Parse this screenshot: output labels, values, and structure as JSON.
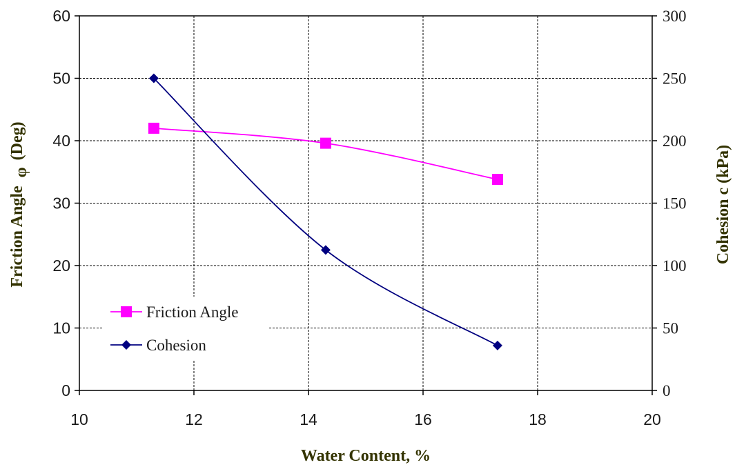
{
  "chart_data": {
    "type": "line",
    "xlabel": "Water Content, %",
    "ylabel_left": "Friction Angle",
    "ylabel_left_symbol": "φ",
    "ylabel_left_unit": "(Deg)",
    "ylabel_right": "Cohesion c (kPa)",
    "xlim": [
      10,
      20
    ],
    "xticks": [
      "10",
      "12",
      "14",
      "16",
      "18",
      "20"
    ],
    "ylim_left": [
      0,
      60
    ],
    "yticks_left": [
      "0",
      "10",
      "20",
      "30",
      "40",
      "50",
      "60"
    ],
    "ylim_right": [
      0,
      300
    ],
    "yticks_right": [
      "0",
      "50",
      "100",
      "150",
      "200",
      "250",
      "300"
    ],
    "grid": true,
    "legend_position": "lower-left",
    "series": [
      {
        "name": "Friction Angle",
        "axis": "left",
        "marker": "square",
        "color": "#ff00ff",
        "x": [
          11.3,
          14.3,
          17.3
        ],
        "y": [
          42,
          39.6,
          33.8
        ]
      },
      {
        "name": "Cohesion",
        "axis": "right",
        "marker": "diamond",
        "color": "#000080",
        "x": [
          11.3,
          14.3,
          17.3
        ],
        "y": [
          250,
          112.5,
          36
        ]
      }
    ]
  }
}
